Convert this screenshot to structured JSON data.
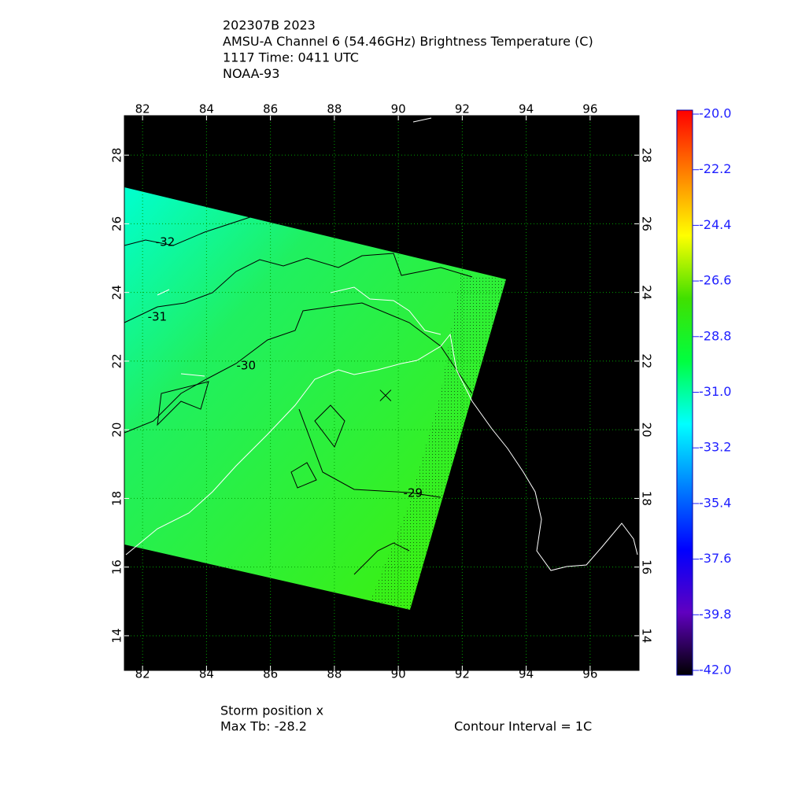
{
  "map": {
    "title_lines": [
      "202307B 2023",
      "AMSU-A Channel 6 (54.46GHz) Brightness Temperature (C)",
      "1117 Time: 0411 UTC",
      "NOAA-93"
    ],
    "xlim": [
      81.43,
      97.53
    ],
    "ylim": [
      12.99,
      29.15
    ],
    "xticks": [
      82,
      84,
      86,
      88,
      90,
      92,
      94,
      96
    ],
    "yticks": [
      14,
      16,
      18,
      20,
      22,
      24,
      26,
      28
    ],
    "grid": true,
    "grid_color": "#00a000",
    "colorbar": {
      "lim": [
        -20,
        -42
      ],
      "colors": [
        "#ff0000",
        "#ff8000",
        "#ffff00",
        "#40e000",
        "#00ff40",
        "#00ffff",
        "#0080ff",
        "#0000ff",
        "#6000c0",
        "#000000"
      ],
      "ticks": [
        {
          "value": -20,
          "label": "-20.0"
        },
        {
          "value": -22.2,
          "label": "-22.2"
        },
        {
          "value": -24.4,
          "label": "-24.4"
        },
        {
          "value": -26.6,
          "label": "-26.6"
        },
        {
          "value": -28.8,
          "label": "-28.8"
        },
        {
          "value": -31,
          "label": "-31.0"
        },
        {
          "value": -33.2,
          "label": "-33.2"
        },
        {
          "value": -35.4,
          "label": "-35.4"
        },
        {
          "value": -37.6,
          "label": "-37.6"
        },
        {
          "value": -39.8,
          "label": "-39.8"
        },
        {
          "value": -42,
          "label": "-42.0"
        }
      ]
    },
    "contours": [
      {
        "label": "-32",
        "lon": 82.71,
        "lat": 25.46
      },
      {
        "label": "-31",
        "lon": 82.46,
        "lat": 23.28
      },
      {
        "label": "-30",
        "lon": 85.24,
        "lat": 21.86
      },
      {
        "label": "-29",
        "lon": 90.46,
        "lat": 18.15
      }
    ],
    "storm": {
      "lon": 89.6,
      "lat": 21.0
    },
    "footer": {
      "storm_position": "Storm position x",
      "max_tb": "Max Tb: -28.2",
      "contour_interval": "Contour Interval = 1C"
    }
  }
}
